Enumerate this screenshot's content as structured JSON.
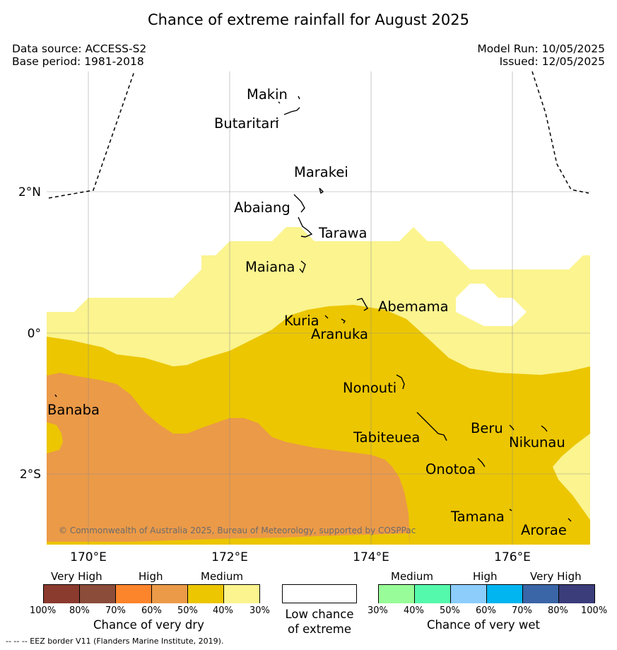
{
  "title": "Chance of extreme rainfall for August 2025",
  "data_source": "Data source: ACCESS-S2",
  "base_period": "Base period: 1981-2018",
  "model_run": "Model Run: 10/05/2025",
  "issued": "Issued: 12/05/2025",
  "copyright": "© Commonwealth of Australia 2025, Bureau of Meteorology, supported by COSPPac",
  "map": {
    "lon_ticks": [
      "170°E",
      "172°E",
      "174°E",
      "176°E"
    ],
    "lat_ticks": [
      "2°N",
      "0°",
      "2°S"
    ],
    "places": [
      "Makin",
      "Butaritari",
      "Marakei",
      "Abaiang",
      "Tarawa",
      "Maiana",
      "Abemama",
      "Kuria",
      "Aranuka",
      "Nonouti",
      "Banaba",
      "Tabiteuea",
      "Beru",
      "Nikunau",
      "Onotoa",
      "Tamana",
      "Arorae"
    ],
    "zone_colors": {
      "very_high_dry_80_100": "#8b3a2e",
      "very_high_dry_70_80": "#8b4c3a",
      "high_dry_60_70": "#fc842a",
      "high_dry_50_60": "#eb9a48",
      "medium_dry_40_50": "#ecc600",
      "medium_dry_30_40": "#fbf48f",
      "low_chance": "#ffffff"
    }
  },
  "legend": {
    "dry": {
      "categories": [
        "Very High",
        "High",
        "Medium"
      ],
      "percents": [
        "100%",
        "80%",
        "70%",
        "60%",
        "50%",
        "40%",
        "30%"
      ],
      "colors": [
        "#8b3a2e",
        "#8b4c3a",
        "#fc842a",
        "#eb9a48",
        "#ecc600",
        "#fbf48f"
      ],
      "title": "Chance of very dry"
    },
    "low": {
      "line1": "Low chance",
      "line2": "of extreme",
      "color": "#ffffff"
    },
    "wet": {
      "categories": [
        "Medium",
        "High",
        "Very High"
      ],
      "percents": [
        "30%",
        "40%",
        "50%",
        "60%",
        "70%",
        "80%",
        "100%"
      ],
      "colors": [
        "#98fc98",
        "#54f9ac",
        "#8ccdfc",
        "#00b5f0",
        "#3a65a6",
        "#3a3d7a"
      ],
      "title": "Chance of very wet"
    }
  },
  "footnote": "--  --  -- EEZ border V11 (Flanders Marine Institute, 2019)."
}
